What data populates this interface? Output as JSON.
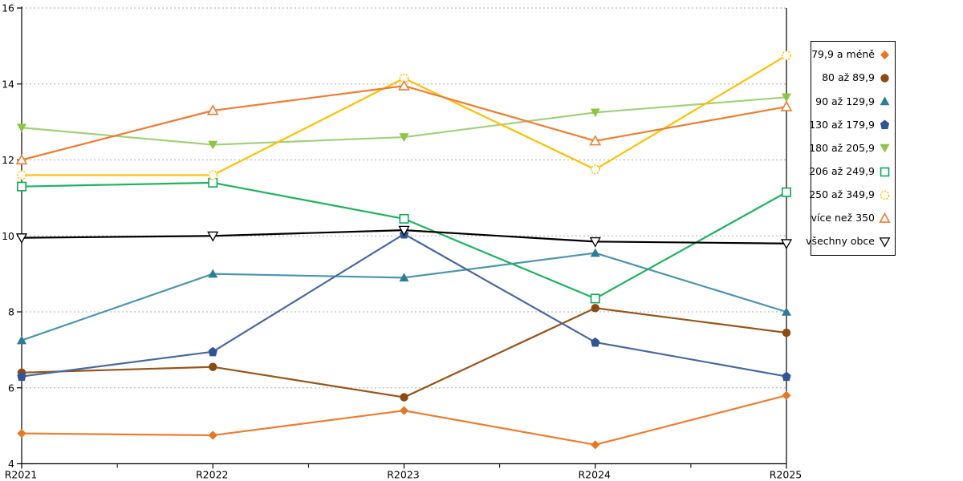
{
  "chart_data": {
    "type": "line",
    "title": "",
    "xlabel": "",
    "ylabel": "",
    "categories": [
      "R2021",
      "R2022",
      "R2023",
      "R2024",
      "R2025"
    ],
    "ylim": [
      4,
      16
    ],
    "y_ticks": [
      4,
      6,
      8,
      10,
      12,
      14,
      16
    ],
    "grid": "horizontal-dotted",
    "grid_color": "#ADADAD",
    "legend_position": "right",
    "series": [
      {
        "name": "79,9 a méně",
        "color": "#ED7D31",
        "marker_color": "#E87722",
        "marker": "diamond",
        "values": [
          4.8,
          4.75,
          5.4,
          4.5,
          5.8
        ]
      },
      {
        "name": "80 až 89,9",
        "color": "#96551A",
        "marker_color": "#8C4A10",
        "marker": "circle",
        "values": [
          6.4,
          6.55,
          5.75,
          8.1,
          7.45
        ]
      },
      {
        "name": "90 až 129,9",
        "color": "#4D95AE",
        "marker_color": "#2B7C97",
        "marker": "triangle-up",
        "values": [
          7.25,
          9.0,
          8.9,
          9.55,
          8.0
        ]
      },
      {
        "name": "130 až 179,9",
        "color": "#48689F",
        "marker_color": "#2F5597",
        "marker": "pentagon",
        "values": [
          6.3,
          6.95,
          10.05,
          7.2,
          6.3
        ]
      },
      {
        "name": "180 až 205,9",
        "color": "#A3CF7B",
        "marker_color": "#8CC63F",
        "marker": "triangle-down",
        "values": [
          12.85,
          12.4,
          12.6,
          13.25,
          13.65
        ]
      },
      {
        "name": "206 až 249,9",
        "color": "#1FB25F",
        "marker_color": "#0CA857",
        "marker": "square-open",
        "values": [
          11.3,
          11.4,
          10.45,
          8.35,
          11.15
        ]
      },
      {
        "name": "250 až 349,9",
        "color": "#FFC000",
        "marker_color": "#FFC000",
        "marker": "circle-open-dashed",
        "values": [
          11.6,
          11.6,
          14.15,
          11.75,
          14.75
        ]
      },
      {
        "name": "více než 350",
        "color": "#ED7D31",
        "marker_color": "#ED7D31",
        "marker": "triangle-up-open",
        "values": [
          12.0,
          13.3,
          13.95,
          12.5,
          13.4
        ]
      },
      {
        "name": "všechny obce",
        "color": "#000000",
        "marker_color": "#000000",
        "marker": "triangle-down-open",
        "values": [
          9.95,
          10.0,
          10.15,
          9.85,
          9.8
        ]
      }
    ]
  }
}
